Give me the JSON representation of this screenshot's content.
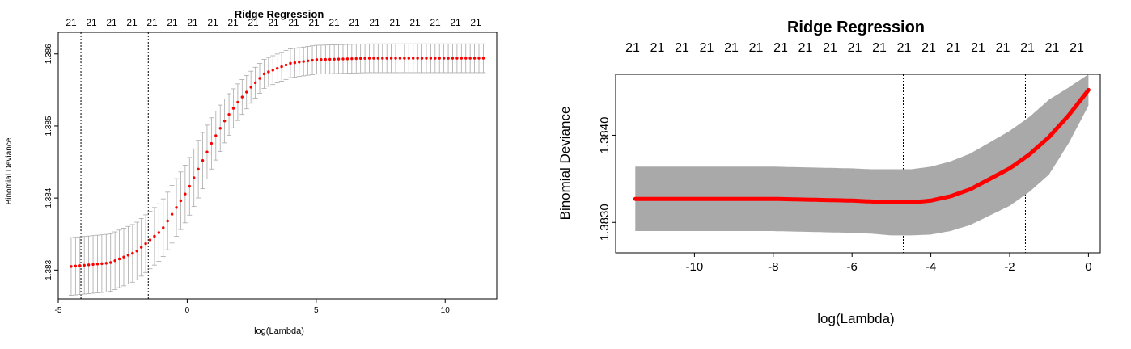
{
  "chart_data": [
    {
      "type": "line",
      "title": "Ridge Regression",
      "xlabel": "log(Lambda)",
      "ylabel": "Binomial Deviance",
      "xlim": [
        -5.0,
        12.0
      ],
      "ylim": [
        1.3826,
        1.3863
      ],
      "xticks": [
        -5,
        0,
        5,
        10
      ],
      "xtick_labels": [
        "-5",
        "0",
        "5",
        "10"
      ],
      "yticks": [
        1.383,
        1.384,
        1.385,
        1.386
      ],
      "ytick_labels": [
        "1.383",
        "1.384",
        "1.385",
        "1.386"
      ],
      "top_axis_labels": [
        "21",
        "21",
        "21",
        "21",
        "21",
        "21",
        "21",
        "21",
        "21",
        "21",
        "21",
        "21",
        "21",
        "21",
        "21",
        "21",
        "21",
        "21",
        "21",
        "21",
        "21"
      ],
      "vlines": [
        -4.12,
        -1.51
      ],
      "series": [
        {
          "x": [
            -4.5,
            -3.0,
            -2.0,
            -1.0,
            0.0,
            0.5,
            1.0,
            1.5,
            2.0,
            2.5,
            3.0,
            4.0,
            5.0,
            7.0,
            9.0,
            11.6
          ],
          "y": [
            1.38305,
            1.3831,
            1.38325,
            1.38355,
            1.3841,
            1.38445,
            1.3848,
            1.3851,
            1.38535,
            1.38555,
            1.38573,
            1.38587,
            1.38592,
            1.38594,
            1.38594,
            1.38594
          ],
          "se": [
            0.0004,
            0.0004,
            0.0004,
            0.0004,
            0.0004,
            0.0004,
            0.00035,
            0.0003,
            0.00025,
            0.00022,
            0.0002,
            0.0002,
            0.0002,
            0.0002,
            0.0002,
            0.0002
          ],
          "color": "#ff0000"
        }
      ],
      "grid": false
    },
    {
      "type": "line",
      "title": "Ridge Regression",
      "xlabel": "log(Lambda)",
      "ylabel": "Binomial Deviance",
      "xlim": [
        -12.0,
        0.3
      ],
      "ylim": [
        1.38265,
        1.3847
      ],
      "xticks": [
        -10,
        -8,
        -6,
        -4,
        -2,
        0
      ],
      "xtick_labels": [
        "-10",
        "-8",
        "-6",
        "-4",
        "-2",
        "0"
      ],
      "yticks": [
        1.383,
        1.384
      ],
      "ytick_labels": [
        "1.3830",
        "1.3840"
      ],
      "top_axis_labels": [
        "21",
        "21",
        "21",
        "21",
        "21",
        "21",
        "21",
        "21",
        "21",
        "21",
        "21",
        "21",
        "21",
        "21",
        "21",
        "21",
        "21",
        "21",
        "21"
      ],
      "vlines": [
        -4.7,
        -1.6
      ],
      "series": [
        {
          "x": [
            -11.5,
            -10,
            -8,
            -7,
            -6,
            -5.5,
            -5,
            -4.5,
            -4.0,
            -3.5,
            -3.0,
            -2.5,
            -2.0,
            -1.5,
            -1.0,
            -0.5,
            0.0
          ],
          "y": [
            1.38327,
            1.38327,
            1.38327,
            1.38326,
            1.38325,
            1.38324,
            1.38323,
            1.38323,
            1.38325,
            1.3833,
            1.38338,
            1.3835,
            1.38362,
            1.38378,
            1.38398,
            1.38423,
            1.38452
          ],
          "se": [
            0.00037,
            0.00037,
            0.00037,
            0.00037,
            0.00037,
            0.00037,
            0.00038,
            0.00038,
            0.00039,
            0.0004,
            0.00041,
            0.00042,
            0.00043,
            0.00043,
            0.00043,
            0.00032,
            0.00018
          ],
          "color": "#ff0000"
        }
      ],
      "grid": false
    }
  ]
}
